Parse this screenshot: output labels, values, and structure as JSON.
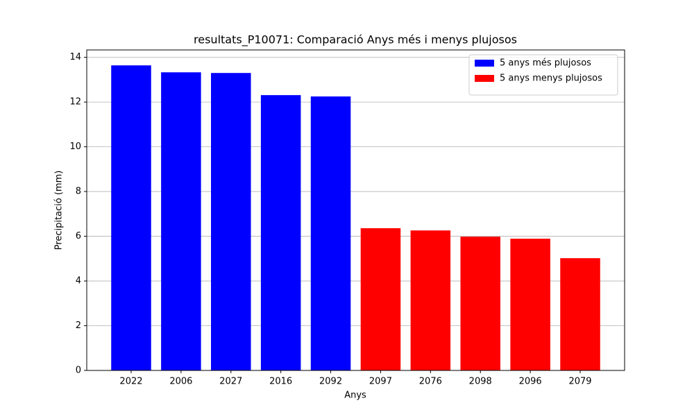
{
  "chart_data": {
    "type": "bar",
    "title": "resultats_P10071: Comparació Anys més i menys plujosos",
    "x_label": "Anys",
    "y_label": "Precipitació (mm)",
    "categories": [
      "2022",
      "2006",
      "2027",
      "2016",
      "2092",
      "2097",
      "2076",
      "2098",
      "2096",
      "2079"
    ],
    "series": [
      {
        "name": "5 anys més plujosos",
        "color": "#0000ff",
        "values": [
          13.64,
          13.33,
          13.3,
          12.31,
          12.25,
          null,
          null,
          null,
          null,
          null
        ]
      },
      {
        "name": "5 anys menys plujosos",
        "color": "#ff0000",
        "values": [
          null,
          null,
          null,
          null,
          null,
          6.36,
          6.26,
          5.98,
          5.89,
          5.02
        ]
      }
    ],
    "ylim": [
      0,
      14.33
    ],
    "yticks": [
      0,
      2,
      4,
      6,
      8,
      10,
      12,
      14
    ],
    "grid": "y",
    "legend": "upper right"
  }
}
